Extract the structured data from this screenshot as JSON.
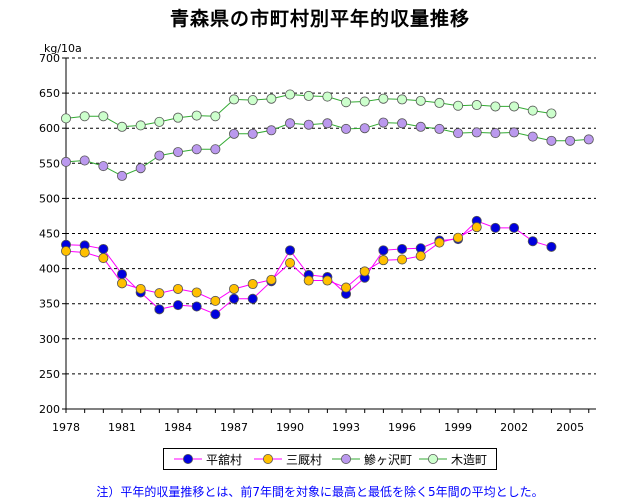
{
  "title": "青森県の市町村別平年的収量推移",
  "note": "注）平年的収量推移とは、前7年間を対象に最高と最低を除く5年間の平均とした。",
  "chart_data": {
    "type": "line",
    "title": "青森県の市町村別平年的収量推移",
    "ylabel": "kg/10a",
    "xlabel": "",
    "ylim": [
      200,
      700
    ],
    "xlim": [
      1978,
      2006
    ],
    "yticks": [
      200,
      250,
      300,
      350,
      400,
      450,
      500,
      550,
      600,
      650,
      700
    ],
    "xticks": [
      1978,
      1981,
      1984,
      1987,
      1990,
      1993,
      1996,
      1999,
      2002,
      2005
    ],
    "grid": "horizontal-dashed",
    "legend_position": "bottom",
    "series": [
      {
        "name": "平舘村",
        "marker_color": "#0000dd",
        "line_color": "#ff00ff",
        "x": [
          1978,
          1979,
          1980,
          1981,
          1982,
          1983,
          1984,
          1985,
          1986,
          1987,
          1988,
          1989,
          1990,
          1991,
          1992,
          1993,
          1994,
          1995,
          1996,
          1997,
          1998,
          1999,
          2000,
          2001,
          2002,
          2003,
          2004
        ],
        "values": [
          434,
          433,
          428,
          392,
          366,
          342,
          348,
          346,
          335,
          357,
          357,
          382,
          426,
          391,
          388,
          364,
          387,
          426,
          428,
          429,
          440,
          442,
          468,
          458,
          458,
          439,
          431
        ]
      },
      {
        "name": "三厩村",
        "marker_color": "#ffc000",
        "line_color": "#ff00ff",
        "x": [
          1978,
          1979,
          1980,
          1981,
          1982,
          1983,
          1984,
          1985,
          1986,
          1987,
          1988,
          1989,
          1990,
          1991,
          1992,
          1993,
          1994,
          1995,
          1996,
          1997,
          1998,
          1999,
          2000
        ],
        "values": [
          425,
          423,
          415,
          379,
          371,
          365,
          371,
          366,
          354,
          371,
          378,
          384,
          408,
          383,
          383,
          373,
          396,
          412,
          413,
          418,
          437,
          444,
          459
        ]
      },
      {
        "name": "鰺ヶ沢町",
        "marker_color": "#bb99ee",
        "line_color": "#33aa33",
        "x": [
          1978,
          1979,
          1980,
          1981,
          1982,
          1983,
          1984,
          1985,
          1986,
          1987,
          1988,
          1989,
          1990,
          1991,
          1992,
          1993,
          1994,
          1995,
          1996,
          1997,
          1998,
          1999,
          2000,
          2001,
          2002,
          2003,
          2004,
          2005,
          2006
        ],
        "values": [
          552,
          554,
          546,
          532,
          543,
          561,
          566,
          570,
          570,
          592,
          592,
          597,
          607,
          605,
          607,
          599,
          600,
          608,
          607,
          602,
          599,
          593,
          594,
          593,
          594,
          588,
          582,
          582,
          584
        ]
      },
      {
        "name": "木造町",
        "marker_color": "#ccffcc",
        "line_color": "#33aa33",
        "x": [
          1978,
          1979,
          1980,
          1981,
          1982,
          1983,
          1984,
          1985,
          1986,
          1987,
          1988,
          1989,
          1990,
          1991,
          1992,
          1993,
          1994,
          1995,
          1996,
          1997,
          1998,
          1999,
          2000,
          2001,
          2002,
          2003,
          2004
        ],
        "values": [
          614,
          617,
          617,
          602,
          604,
          609,
          615,
          618,
          617,
          641,
          640,
          642,
          648,
          646,
          645,
          637,
          638,
          642,
          641,
          639,
          636,
          632,
          633,
          631,
          631,
          625,
          621
        ]
      }
    ]
  }
}
